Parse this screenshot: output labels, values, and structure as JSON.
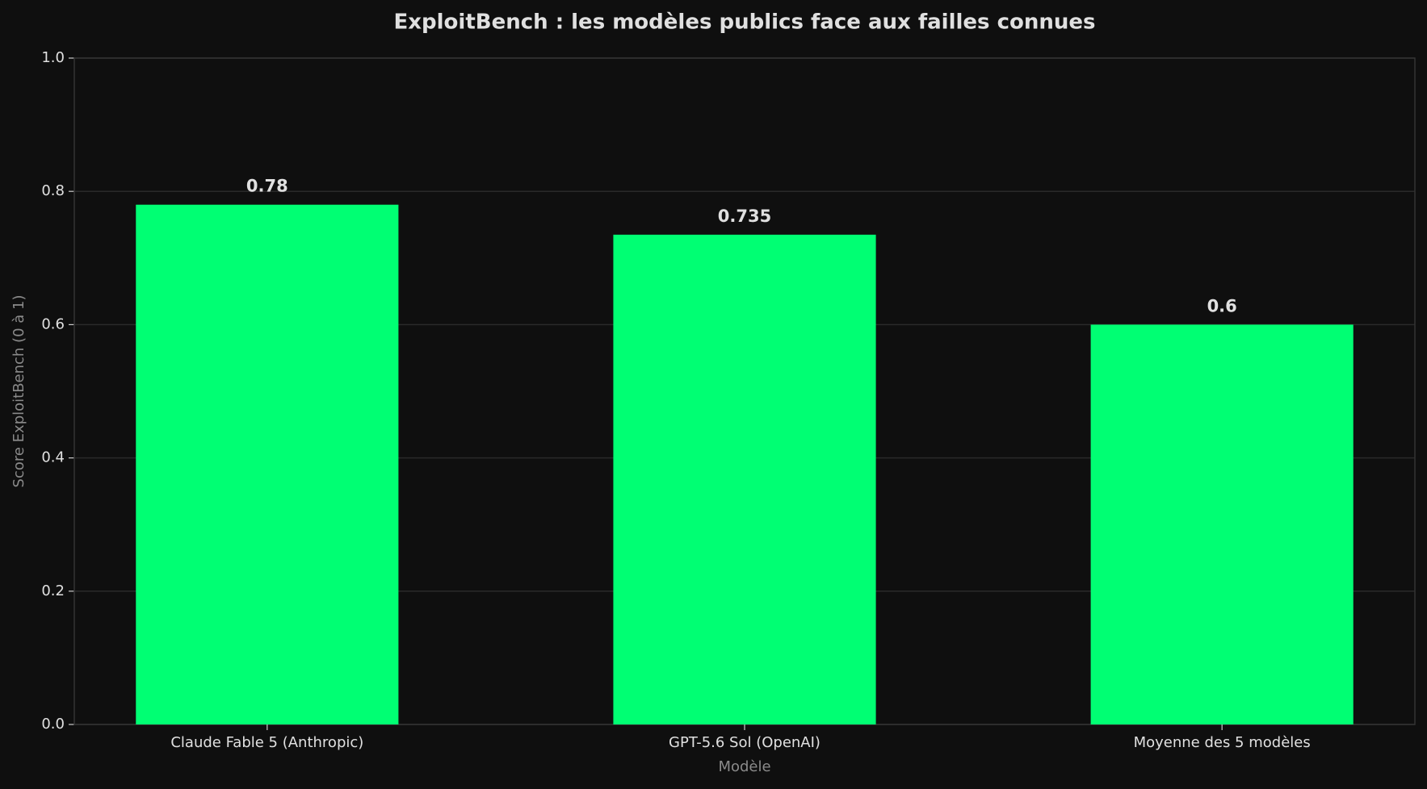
{
  "chart_data": {
    "type": "bar",
    "title": "ExploitBench : les modèles publics face aux failles connues",
    "xlabel": "Modèle",
    "ylabel": "Score ExploitBench (0 à 1)",
    "categories": [
      "Claude Fable 5 (Anthropic)",
      "GPT-5.6 Sol (OpenAI)",
      "Moyenne des 5 modèles"
    ],
    "values": [
      0.78,
      0.735,
      0.6
    ],
    "color": "#00ff73",
    "ylim": [
      0,
      1
    ],
    "yticks": [
      {
        "value": 0,
        "label": "0.0"
      },
      0.2,
      0.4,
      0.6,
      0.8,
      {
        "value": 1,
        "label": "1.0"
      }
    ],
    "grid": true
  }
}
